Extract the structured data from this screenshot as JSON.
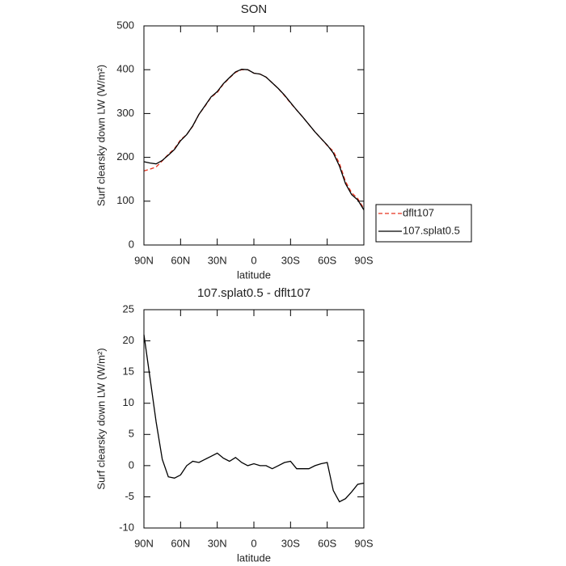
{
  "chart_data": [
    {
      "type": "line",
      "title": "SON",
      "y_label": "Surf clearsky down LW (W/m²)",
      "x_label": "latitude",
      "x": [
        90,
        85,
        80,
        75,
        70,
        65,
        60,
        55,
        50,
        45,
        40,
        35,
        30,
        25,
        20,
        15,
        10,
        5,
        0,
        -5,
        -10,
        -15,
        -20,
        -25,
        -30,
        -35,
        -40,
        -45,
        -50,
        -55,
        -60,
        -65,
        -70,
        -75,
        -80,
        -85,
        -90
      ],
      "xlim": [
        90,
        -90
      ],
      "xticks": [
        {
          "value": 90,
          "label": "90N"
        },
        {
          "value": 60,
          "label": "60N"
        },
        {
          "value": 30,
          "label": "30N"
        },
        0,
        {
          "value": -30,
          "label": "30S"
        },
        {
          "value": -60,
          "label": "60S"
        },
        {
          "value": -90,
          "label": "90S"
        }
      ],
      "ylim": [
        0,
        500
      ],
      "yticks": [
        0,
        100,
        200,
        300,
        400,
        500
      ],
      "legend": "outside-right-bottom",
      "series": [
        {
          "name": "dflt107",
          "color": "#e8321e",
          "dash": true,
          "values": [
            169,
            173,
            178,
            192,
            207,
            220,
            240,
            252,
            271,
            298,
            317,
            337,
            348,
            367,
            381,
            394,
            400,
            400,
            392,
            390,
            383,
            370,
            357,
            341,
            324,
            308,
            292,
            275,
            258,
            243,
            227,
            214,
            186,
            145,
            119,
            106,
            83
          ]
        },
        {
          "name": "107.splat0.5",
          "color": "#000000",
          "dash": false,
          "values": [
            190,
            187,
            185,
            193,
            205,
            218,
            238,
            252,
            272,
            298,
            318,
            338,
            350,
            368,
            382,
            395,
            401,
            400,
            392,
            390,
            383,
            370,
            357,
            342,
            325,
            308,
            292,
            275,
            258,
            243,
            228,
            210,
            180,
            140,
            115,
            103,
            80
          ]
        }
      ]
    },
    {
      "type": "line",
      "title": "107.splat0.5 - dflt107",
      "y_label": "Surf clearsky down LW (W/m²)",
      "x_label": "latitude",
      "x": [
        90,
        85,
        80,
        75,
        70,
        65,
        60,
        55,
        50,
        45,
        40,
        35,
        30,
        25,
        20,
        15,
        10,
        5,
        0,
        -5,
        -10,
        -15,
        -20,
        -25,
        -30,
        -35,
        -40,
        -45,
        -50,
        -55,
        -60,
        -65,
        -70,
        -75,
        -80,
        -85,
        -90
      ],
      "xlim": [
        90,
        -90
      ],
      "xticks": [
        {
          "value": 90,
          "label": "90N"
        },
        {
          "value": 60,
          "label": "60N"
        },
        {
          "value": 30,
          "label": "30N"
        },
        0,
        {
          "value": -30,
          "label": "30S"
        },
        {
          "value": -60,
          "label": "60S"
        },
        {
          "value": -90,
          "label": "90S"
        }
      ],
      "ylim": [
        -10,
        25
      ],
      "yticks": [
        -10,
        -5,
        0,
        5,
        10,
        15,
        20,
        25
      ],
      "series": [
        {
          "color": "#000000",
          "dash": false,
          "values": [
            21,
            14,
            7,
            1,
            -1.8,
            -2,
            -1.5,
            0,
            0.7,
            0.5,
            1,
            1.5,
            2,
            1.2,
            0.7,
            1.3,
            0.5,
            0,
            0.3,
            0,
            0,
            -0.5,
            0,
            0.5,
            0.7,
            -0.5,
            -0.5,
            -0.5,
            0,
            0.3,
            0.5,
            -4,
            -5.8,
            -5.3,
            -4.2,
            -3,
            -2.8
          ]
        }
      ]
    }
  ]
}
